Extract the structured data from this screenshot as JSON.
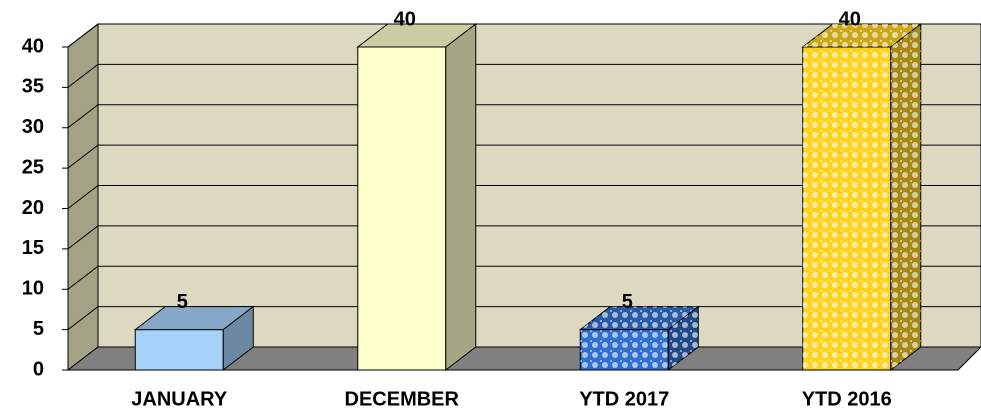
{
  "chart_data": {
    "type": "bar3d",
    "categories": [
      "JANUARY",
      "DECEMBER",
      "YTD 2017",
      "YTD 2016"
    ],
    "values": [
      5,
      40,
      5,
      40
    ],
    "colors": [
      "#a6d2fa",
      "#ffffcc",
      "#2f6fd0",
      "#ffd21e"
    ],
    "patterned": [
      false,
      false,
      true,
      true
    ],
    "ylim": [
      0,
      40
    ],
    "yticks": [
      0,
      5,
      10,
      15,
      20,
      25,
      30,
      35,
      40
    ],
    "grid": true
  }
}
